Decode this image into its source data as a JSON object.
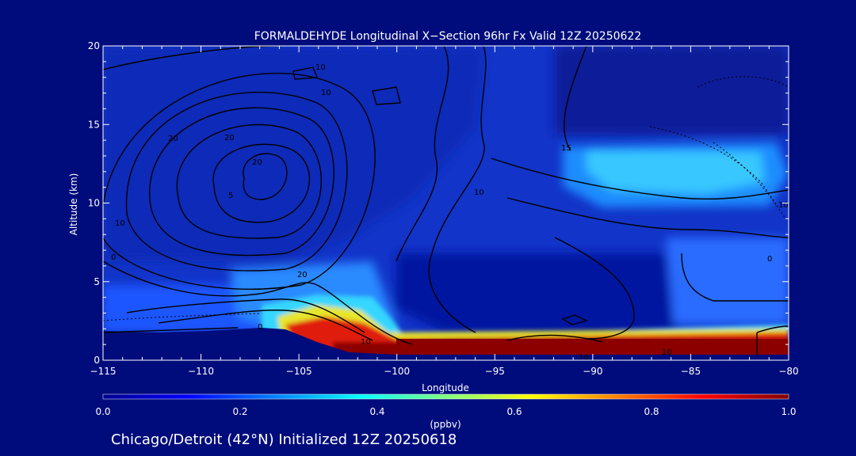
{
  "chart_data": {
    "type": "heatmap",
    "title": "FORMALDEHYDE Longitudinal X−Section 96hr  Fx Valid 12Z 20250622",
    "xlabel": "Longitude",
    "ylabel": "Altitude (km)",
    "xlim": [
      -115,
      -80
    ],
    "ylim": [
      0,
      20
    ],
    "x_ticks": [
      -115,
      -110,
      -105,
      -100,
      -95,
      -90,
      -85,
      -80
    ],
    "x_tick_labels": [
      "−115",
      "−110",
      "−105",
      "−100",
      "−95",
      "−90",
      "−85",
      "−80"
    ],
    "y_ticks": [
      0,
      5,
      10,
      15,
      20
    ],
    "y_tick_labels": [
      "0",
      "5",
      "10",
      "15",
      "20"
    ],
    "colorbar": {
      "label": "(ppbv)",
      "min": 0.0,
      "max": 1.0,
      "ticks": [
        0.0,
        0.2,
        0.4,
        0.6,
        0.8,
        1.0
      ],
      "tick_labels": [
        "0.0",
        "0.2",
        "0.4",
        "0.6",
        "0.8",
        "1.0"
      ],
      "colormap": "jet",
      "stops": [
        "#00008f",
        "#0000ff",
        "#00ffff",
        "#ffff00",
        "#ff0000",
        "#800000"
      ]
    },
    "field": [
      {
        "region": "boundary-layer-east",
        "lon": [
          -100,
          -80
        ],
        "alt": [
          0.4,
          1.6
        ],
        "value": 1.0
      },
      {
        "region": "boundary-layer-west",
        "lon": [
          -106,
          -99
        ],
        "alt": [
          1.2,
          3.2
        ],
        "value": 0.9
      },
      {
        "region": "upper-plume-east",
        "lon": [
          -91,
          -80
        ],
        "alt": [
          10.5,
          14.0
        ],
        "value": 0.35
      },
      {
        "region": "mid-troposphere",
        "lon": [
          -115,
          -80
        ],
        "alt": [
          3,
          10
        ],
        "value": 0.15
      },
      {
        "region": "upper-west",
        "lon": [
          -115,
          -95
        ],
        "alt": [
          10,
          20
        ],
        "value": 0.12
      }
    ],
    "contour_labels": [
      "10",
      "10",
      "20",
      "20",
      "20",
      "10",
      "10",
      "10",
      "0",
      "0",
      "20",
      "5",
      "10",
      "15",
      "10",
      "0",
      "10"
    ],
    "grid": false
  },
  "footer": {
    "caption": "Chicago/Detroit (42°N) Initialized 12Z 20250618"
  }
}
